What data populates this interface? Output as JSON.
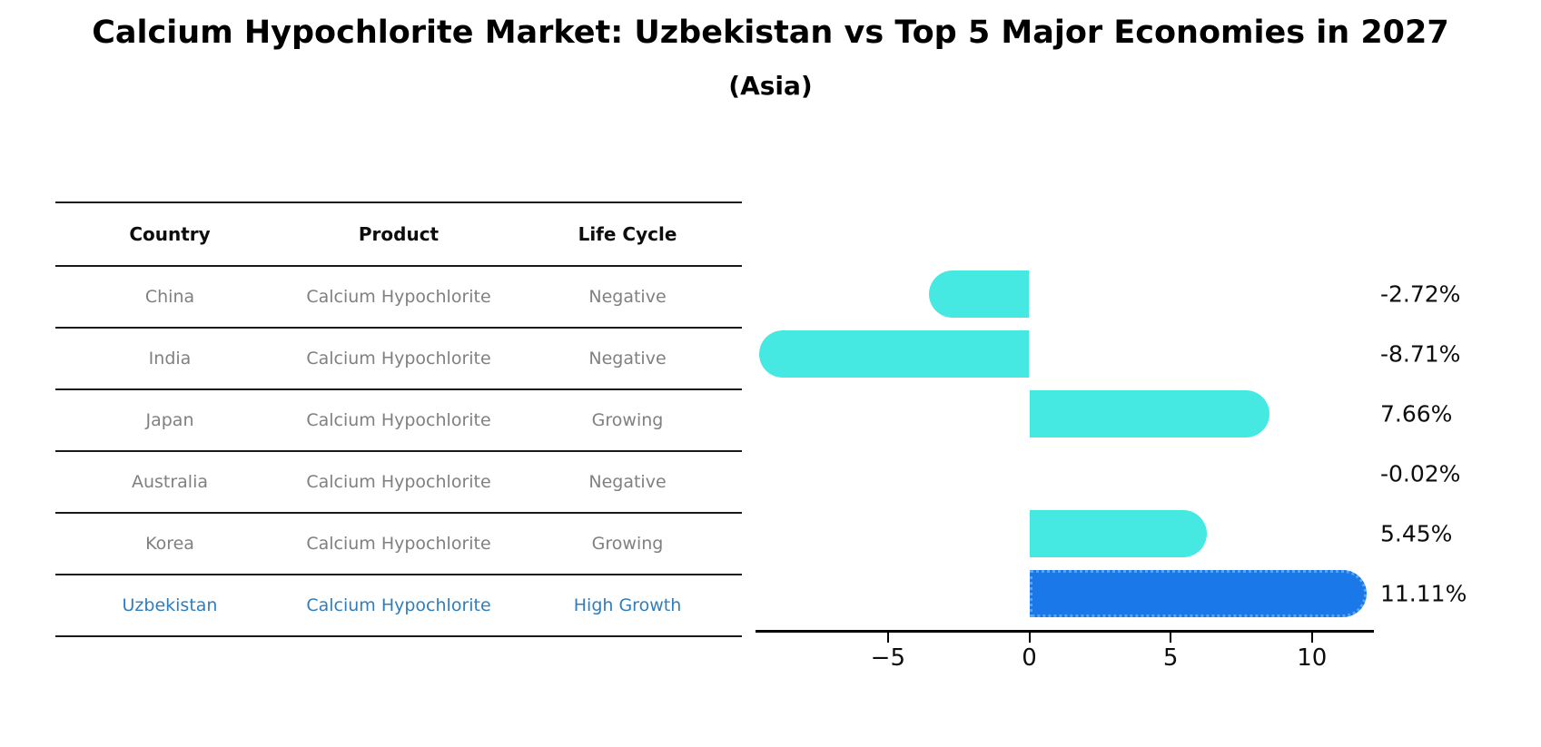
{
  "title": "Calcium Hypochlorite Market: Uzbekistan vs Top 5 Major Economies in 2027",
  "subtitle": "(Asia)",
  "table": {
    "headers": [
      "Country",
      "Product",
      "Life Cycle"
    ],
    "rows": [
      {
        "country": "China",
        "product": "Calcium Hypochlorite",
        "life_cycle": "Negative",
        "highlight": false
      },
      {
        "country": "India",
        "product": "Calcium Hypochlorite",
        "life_cycle": "Negative",
        "highlight": false
      },
      {
        "country": "Japan",
        "product": "Calcium Hypochlorite",
        "life_cycle": "Growing",
        "highlight": false
      },
      {
        "country": "Australia",
        "product": "Calcium Hypochlorite",
        "life_cycle": "Negative",
        "highlight": false
      },
      {
        "country": "Korea",
        "product": "Calcium Hypochlorite",
        "life_cycle": "Growing",
        "highlight": false
      },
      {
        "country": "Uzbekistan",
        "product": "Calcium Hypochlorite",
        "life_cycle": "High Growth",
        "highlight": true
      }
    ]
  },
  "chart_data": {
    "type": "bar",
    "orientation": "horizontal",
    "title": "Calcium Hypochlorite Market: Uzbekistan vs Top 5 Major Economies in 2027 (Asia)",
    "categories": [
      "China",
      "India",
      "Japan",
      "Australia",
      "Korea",
      "Uzbekistan"
    ],
    "values": [
      -2.72,
      -8.71,
      7.66,
      -0.02,
      5.45,
      11.11
    ],
    "value_labels": [
      "-2.72%",
      "-8.71%",
      "7.66%",
      "-0.02%",
      "5.45%",
      "11.11%"
    ],
    "x_ticks": [
      -5,
      0,
      5,
      10
    ],
    "x_tick_labels": [
      "−5",
      "0",
      "5",
      "10"
    ],
    "xlim": [
      -9.7,
      12.2
    ],
    "grid": false,
    "legend": "none",
    "bar_color": "#46E8E2",
    "highlight_bar_color": "#1A78E8",
    "highlight_bar_edge_color": "#5AA5F2",
    "highlight_index": 5
  },
  "colors": {
    "background": "#ffffff",
    "title_text": "#000000",
    "header_text": "#0d0d0d",
    "cell_text": "#808080",
    "highlight_text": "#2E7EBE",
    "table_line": "#1a1a1a",
    "axis": "#000000",
    "value_label_text": "#0d0d0d"
  }
}
